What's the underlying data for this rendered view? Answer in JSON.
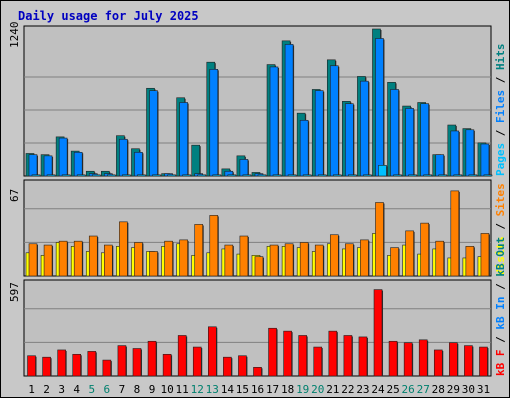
{
  "title": "Daily usage for July 2025",
  "colors": {
    "pages": "#00c0ff",
    "files": "#0080ff",
    "hits": "#008080",
    "visits": "#ffff00",
    "sites": "#ff8000",
    "kbin": "#0080ff",
    "kbout": "#008080",
    "kbf": "#ff0000",
    "title": "#0000c0",
    "weekend": "#00806e",
    "plot_bg": "#c0c0c0",
    "grid": "#808080"
  },
  "chart_data": [
    {
      "type": "bar",
      "panel": "hits-files-pages",
      "max_label": "1240",
      "ylim": [
        0,
        1240
      ],
      "legend": [
        {
          "key": "pages",
          "text": "Pages"
        },
        {
          "key": "files",
          "text": "Files"
        },
        {
          "key": "hits",
          "text": "Hits"
        }
      ],
      "categories": [
        "1",
        "2",
        "3",
        "4",
        "5",
        "6",
        "7",
        "8",
        "9",
        "10",
        "11",
        "12",
        "13",
        "14",
        "15",
        "16",
        "17",
        "18",
        "19",
        "20",
        "21",
        "22",
        "23",
        "24",
        "25",
        "26",
        "27",
        "28",
        "29",
        "30",
        "31"
      ],
      "series": [
        {
          "name": "Hits",
          "values": [
            190,
            180,
            330,
            210,
            40,
            40,
            340,
            230,
            740,
            20,
            660,
            260,
            960,
            60,
            170,
            30,
            940,
            1140,
            530,
            730,
            980,
            630,
            840,
            1240,
            790,
            590,
            620,
            180,
            430,
            400,
            280
          ]
        },
        {
          "name": "Files",
          "values": [
            180,
            170,
            320,
            200,
            20,
            20,
            310,
            200,
            720,
            20,
            620,
            20,
            900,
            40,
            140,
            20,
            920,
            1110,
            470,
            720,
            930,
            610,
            800,
            1160,
            730,
            570,
            610,
            180,
            380,
            390,
            270
          ]
        },
        {
          "name": "Pages",
          "values": [
            10,
            10,
            10,
            10,
            10,
            10,
            10,
            10,
            10,
            10,
            10,
            10,
            10,
            10,
            10,
            10,
            10,
            10,
            10,
            10,
            10,
            10,
            10,
            90,
            10,
            10,
            10,
            10,
            10,
            10,
            10
          ]
        }
      ]
    },
    {
      "type": "bar",
      "panel": "sites-visits",
      "max_label": "67",
      "ylim": [
        0,
        67
      ],
      "legend": [
        {
          "key": "visits",
          "text": "Visits"
        },
        {
          "key": "sites",
          "text": "Sites"
        }
      ],
      "categories": [
        "1",
        "2",
        "3",
        "4",
        "5",
        "6",
        "7",
        "8",
        "9",
        "10",
        "11",
        "12",
        "13",
        "14",
        "15",
        "16",
        "17",
        "18",
        "19",
        "20",
        "21",
        "22",
        "23",
        "24",
        "25",
        "26",
        "27",
        "28",
        "29",
        "30",
        "31"
      ],
      "series": [
        {
          "name": "Visits",
          "values": [
            18,
            16,
            26,
            23,
            19,
            18,
            23,
            22,
            19,
            23,
            25,
            16,
            18,
            21,
            17,
            16,
            23,
            23,
            22,
            19,
            25,
            21,
            22,
            33,
            16,
            24,
            17,
            21,
            14,
            14,
            15
          ]
        },
        {
          "name": "Sites",
          "values": [
            25,
            24,
            27,
            27,
            31,
            24,
            42,
            26,
            19,
            27,
            28,
            40,
            47,
            24,
            31,
            15,
            24,
            25,
            26,
            24,
            32,
            25,
            28,
            57,
            22,
            35,
            41,
            27,
            66,
            23,
            33
          ]
        }
      ]
    },
    {
      "type": "bar",
      "panel": "kbf-kbin-kbout",
      "max_label": "597",
      "ylim": [
        0,
        597
      ],
      "legend": [
        {
          "key": "kbf",
          "text": "kB F"
        },
        {
          "key": "kbin",
          "text": "kB In"
        },
        {
          "key": "kbout",
          "text": "kB Out"
        }
      ],
      "categories": [
        "1",
        "2",
        "3",
        "4",
        "5",
        "6",
        "7",
        "8",
        "9",
        "10",
        "11",
        "12",
        "13",
        "14",
        "15",
        "16",
        "17",
        "18",
        "19",
        "20",
        "21",
        "22",
        "23",
        "24",
        "25",
        "26",
        "27",
        "28",
        "29",
        "30",
        "31"
      ],
      "series": [
        {
          "name": "kB F",
          "values": [
            140,
            130,
            180,
            150,
            170,
            110,
            210,
            190,
            240,
            150,
            280,
            200,
            340,
            130,
            140,
            60,
            330,
            310,
            280,
            200,
            310,
            280,
            270,
            597,
            240,
            230,
            250,
            180,
            230,
            210,
            200
          ]
        }
      ]
    }
  ],
  "x_axis": {
    "labels": [
      "1",
      "2",
      "3",
      "4",
      "5",
      "6",
      "7",
      "8",
      "9",
      "10",
      "11",
      "12",
      "13",
      "14",
      "15",
      "16",
      "17",
      "18",
      "19",
      "20",
      "21",
      "22",
      "23",
      "24",
      "25",
      "26",
      "27",
      "28",
      "29",
      "30",
      "31"
    ],
    "weekend_days": [
      "5",
      "6",
      "12",
      "13",
      "19",
      "20",
      "26",
      "27"
    ]
  }
}
